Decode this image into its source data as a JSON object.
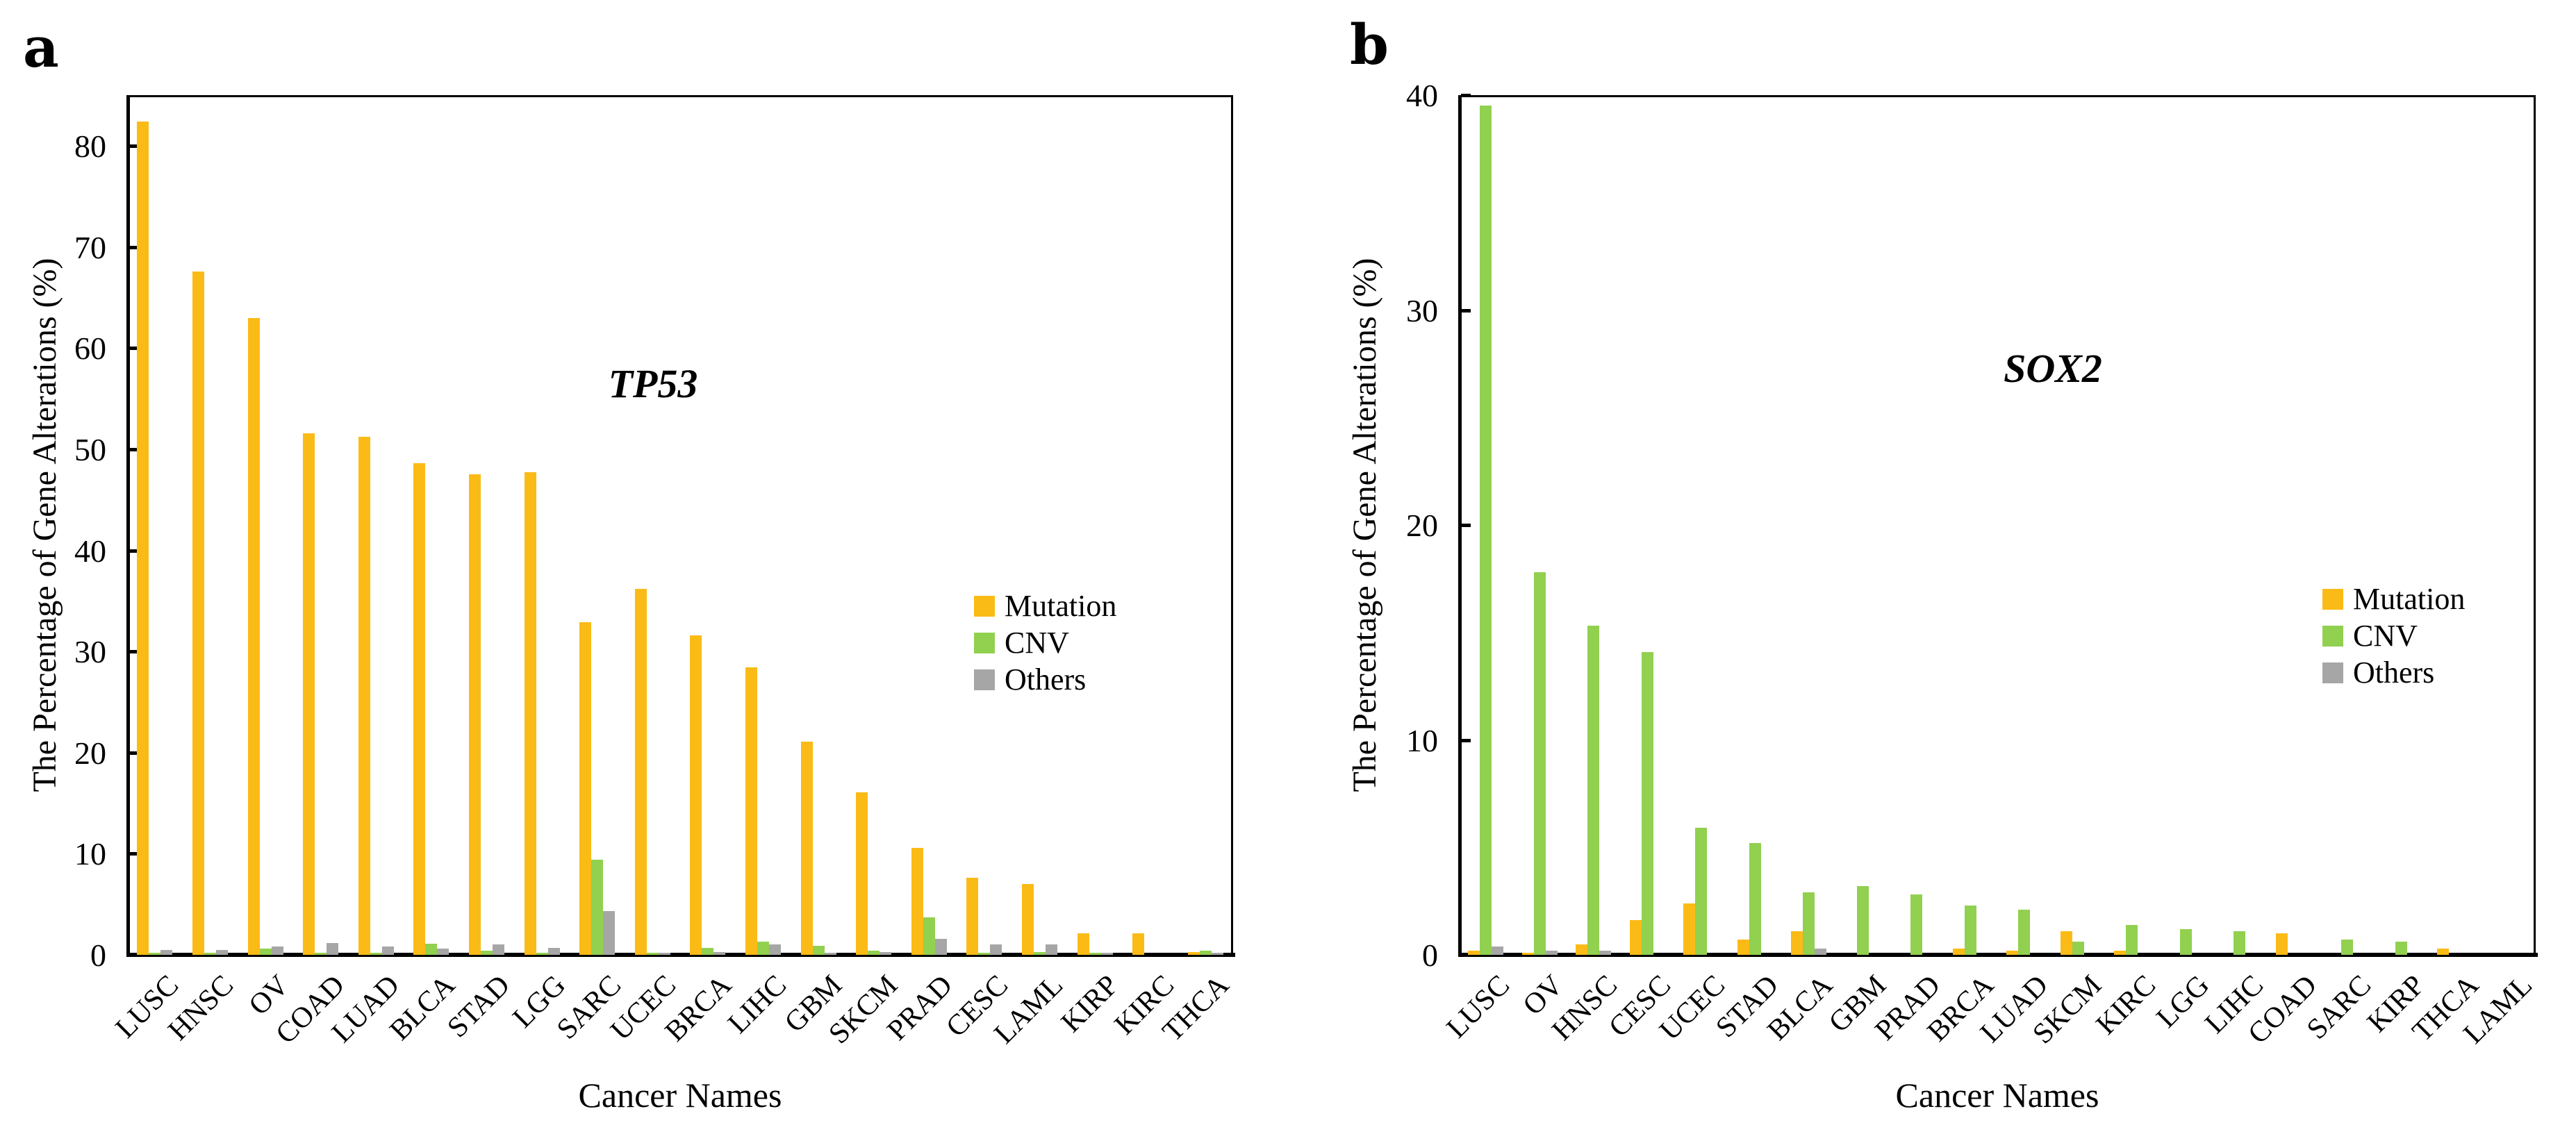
{
  "figure": {
    "panels": [
      {
        "letter": "a"
      },
      {
        "letter": "b"
      }
    ]
  },
  "legend": {
    "items": [
      {
        "label": "Mutation",
        "color": "#FBBB16"
      },
      {
        "label": "CNV",
        "color": "#92D050"
      },
      {
        "label": "Others",
        "color": "#A6A6A6"
      }
    ]
  },
  "chart_data": [
    {
      "type": "bar",
      "panel": "a",
      "title": "TP53",
      "xlabel": "Cancer Names",
      "ylabel": "The Percentage of Gene Alterations (%)",
      "ylim": [
        0,
        85
      ],
      "yticks": [
        0,
        10,
        20,
        30,
        40,
        50,
        60,
        70,
        80
      ],
      "grid": false,
      "legend_position": "right-middle-inside",
      "categories": [
        "LUSC",
        "HNSC",
        "OV",
        "COAD",
        "LUAD",
        "BLCA",
        "STAD",
        "LGG",
        "SARC",
        "UCEC",
        "BRCA",
        "LIHC",
        "GBM",
        "SKCM",
        "PRAD",
        "CESC",
        "LAML",
        "KIRP",
        "KIRC",
        "THCA"
      ],
      "series": [
        {
          "name": "Mutation",
          "values": [
            82.4,
            67.6,
            63.0,
            51.6,
            51.2,
            48.6,
            47.5,
            47.7,
            32.9,
            36.2,
            31.6,
            28.4,
            21.1,
            16.1,
            10.6,
            7.6,
            7.0,
            2.1,
            2.1,
            0.3
          ]
        },
        {
          "name": "CNV",
          "values": [
            0.1,
            0.1,
            0.6,
            0.1,
            0.1,
            1.1,
            0.4,
            0.1,
            9.4,
            0.1,
            0.7,
            1.3,
            0.9,
            0.4,
            3.7,
            0.1,
            0.3,
            0.2,
            0.0,
            0.4
          ]
        },
        {
          "name": "Others",
          "values": [
            0.5,
            0.5,
            0.8,
            1.2,
            0.8,
            0.6,
            1.0,
            0.7,
            4.3,
            0.2,
            0.3,
            1.0,
            0.1,
            0.3,
            1.6,
            1.0,
            1.0,
            0.1,
            0.0,
            0.1
          ]
        }
      ]
    },
    {
      "type": "bar",
      "panel": "b",
      "title": "SOX2",
      "xlabel": "Cancer Names",
      "ylabel": "The Percentage of Gene Alterations (%)",
      "ylim": [
        0,
        40
      ],
      "yticks": [
        0,
        10,
        20,
        30,
        40
      ],
      "grid": false,
      "legend_position": "right-middle-inside",
      "categories": [
        "LUSC",
        "OV",
        "HNSC",
        "CESC",
        "UCEC",
        "STAD",
        "BLCA",
        "GBM",
        "PRAD",
        "BRCA",
        "LUAD",
        "SKCM",
        "KIRC",
        "LGG",
        "LIHC",
        "COAD",
        "SARC",
        "KIRP",
        "THCA",
        "LAML"
      ],
      "series": [
        {
          "name": "Mutation",
          "values": [
            0.2,
            0.1,
            0.5,
            1.6,
            2.4,
            0.7,
            1.1,
            0.0,
            0.0,
            0.3,
            0.2,
            1.1,
            0.2,
            0.0,
            0.0,
            1.0,
            0.0,
            0.0,
            0.3,
            0.0
          ]
        },
        {
          "name": "CNV",
          "values": [
            39.5,
            17.8,
            15.3,
            14.1,
            5.9,
            5.2,
            2.9,
            3.2,
            2.8,
            2.3,
            2.1,
            0.6,
            1.4,
            1.2,
            1.1,
            0.0,
            0.7,
            0.6,
            0.0,
            0.0
          ]
        },
        {
          "name": "Others",
          "values": [
            0.4,
            0.2,
            0.2,
            0.0,
            0.0,
            0.0,
            0.3,
            0.0,
            0.0,
            0.0,
            0.0,
            0.0,
            0.0,
            0.0,
            0.0,
            0.0,
            0.0,
            0.0,
            0.0,
            0.0
          ]
        }
      ]
    }
  ]
}
